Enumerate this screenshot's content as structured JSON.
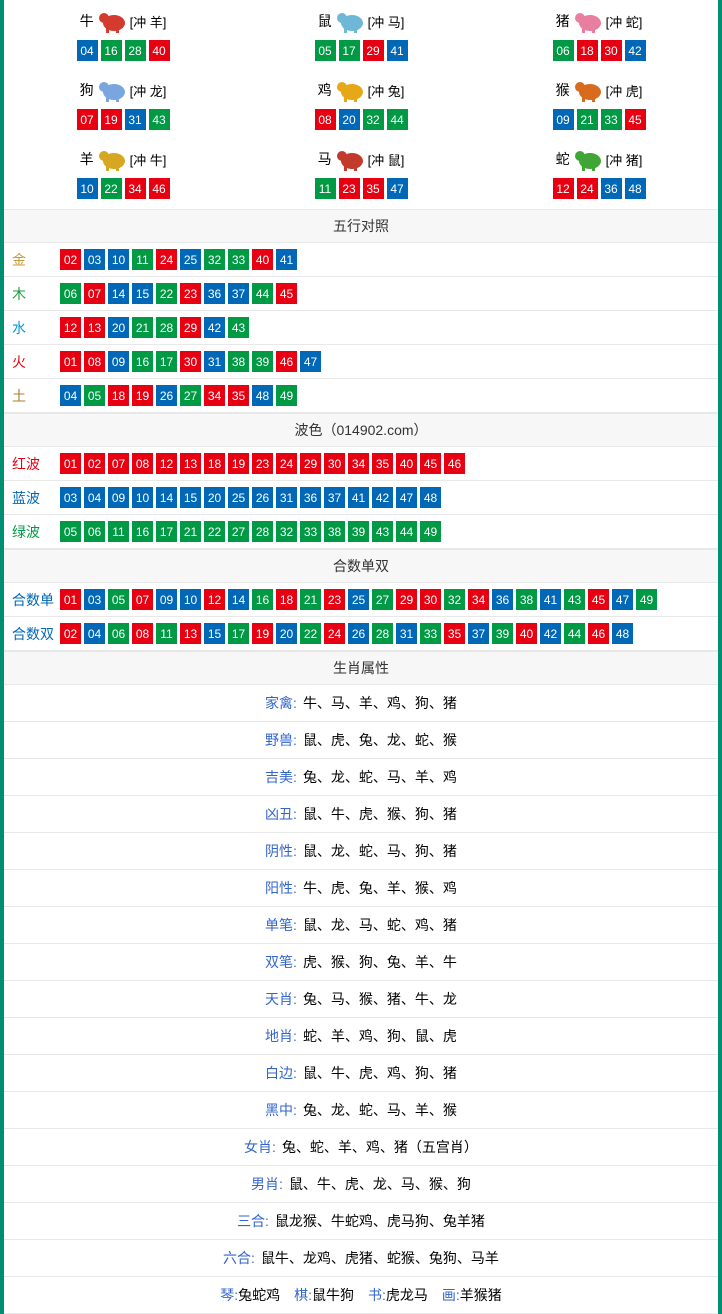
{
  "colors": {
    "red": "#e60012",
    "blue": "#0068b7",
    "green": "#009944",
    "border": "#009071",
    "gold": "#c89a36",
    "fire": "#e60012",
    "water": "#0099dd",
    "earth": "#b07a2a",
    "wood": "#1b9a3a",
    "label_blue": "#3366cc"
  },
  "zodiac": [
    {
      "name": "牛",
      "clash": "[冲 羊]",
      "icon": "ox",
      "icon_color": "#d23b2e",
      "balls": [
        {
          "n": "04",
          "c": "blue"
        },
        {
          "n": "16",
          "c": "green"
        },
        {
          "n": "28",
          "c": "green"
        },
        {
          "n": "40",
          "c": "red"
        }
      ]
    },
    {
      "name": "鼠",
      "clash": "[冲 马]",
      "icon": "rat",
      "icon_color": "#6fb7d6",
      "balls": [
        {
          "n": "05",
          "c": "green"
        },
        {
          "n": "17",
          "c": "green"
        },
        {
          "n": "29",
          "c": "red"
        },
        {
          "n": "41",
          "c": "blue"
        }
      ]
    },
    {
      "name": "猪",
      "clash": "[冲 蛇]",
      "icon": "pig",
      "icon_color": "#e87fa0",
      "balls": [
        {
          "n": "06",
          "c": "green"
        },
        {
          "n": "18",
          "c": "red"
        },
        {
          "n": "30",
          "c": "red"
        },
        {
          "n": "42",
          "c": "blue"
        }
      ]
    },
    {
      "name": "狗",
      "clash": "[冲 龙]",
      "icon": "dog",
      "icon_color": "#7aa6e0",
      "balls": [
        {
          "n": "07",
          "c": "red"
        },
        {
          "n": "19",
          "c": "red"
        },
        {
          "n": "31",
          "c": "blue"
        },
        {
          "n": "43",
          "c": "green"
        }
      ]
    },
    {
      "name": "鸡",
      "clash": "[冲 兔]",
      "icon": "rooster",
      "icon_color": "#e6a817",
      "balls": [
        {
          "n": "08",
          "c": "red"
        },
        {
          "n": "20",
          "c": "blue"
        },
        {
          "n": "32",
          "c": "green"
        },
        {
          "n": "44",
          "c": "green"
        }
      ]
    },
    {
      "name": "猴",
      "clash": "[冲 虎]",
      "icon": "monkey",
      "icon_color": "#d96b1f",
      "balls": [
        {
          "n": "09",
          "c": "blue"
        },
        {
          "n": "21",
          "c": "green"
        },
        {
          "n": "33",
          "c": "green"
        },
        {
          "n": "45",
          "c": "red"
        }
      ]
    },
    {
      "name": "羊",
      "clash": "[冲 牛]",
      "icon": "goat",
      "icon_color": "#d6a721",
      "balls": [
        {
          "n": "10",
          "c": "blue"
        },
        {
          "n": "22",
          "c": "green"
        },
        {
          "n": "34",
          "c": "red"
        },
        {
          "n": "46",
          "c": "red"
        }
      ]
    },
    {
      "name": "马",
      "clash": "[冲 鼠]",
      "icon": "horse",
      "icon_color": "#c13a2b",
      "balls": [
        {
          "n": "11",
          "c": "green"
        },
        {
          "n": "23",
          "c": "red"
        },
        {
          "n": "35",
          "c": "red"
        },
        {
          "n": "47",
          "c": "blue"
        }
      ]
    },
    {
      "name": "蛇",
      "clash": "[冲 猪]",
      "icon": "snake",
      "icon_color": "#3fa535",
      "balls": [
        {
          "n": "12",
          "c": "red"
        },
        {
          "n": "24",
          "c": "red"
        },
        {
          "n": "36",
          "c": "blue"
        },
        {
          "n": "48",
          "c": "blue"
        }
      ]
    }
  ],
  "sections": {
    "wuxing_header": "五行对照",
    "bose_header": "波色（014902.com）",
    "heshu_header": "合数单双",
    "shuxing_header": "生肖属性"
  },
  "wuxing": [
    {
      "label": "金",
      "label_color": "#c89a36",
      "balls": [
        {
          "n": "02",
          "c": "red"
        },
        {
          "n": "03",
          "c": "blue"
        },
        {
          "n": "10",
          "c": "blue"
        },
        {
          "n": "11",
          "c": "green"
        },
        {
          "n": "24",
          "c": "red"
        },
        {
          "n": "25",
          "c": "blue"
        },
        {
          "n": "32",
          "c": "green"
        },
        {
          "n": "33",
          "c": "green"
        },
        {
          "n": "40",
          "c": "red"
        },
        {
          "n": "41",
          "c": "blue"
        }
      ]
    },
    {
      "label": "木",
      "label_color": "#1b9a3a",
      "balls": [
        {
          "n": "06",
          "c": "green"
        },
        {
          "n": "07",
          "c": "red"
        },
        {
          "n": "14",
          "c": "blue"
        },
        {
          "n": "15",
          "c": "blue"
        },
        {
          "n": "22",
          "c": "green"
        },
        {
          "n": "23",
          "c": "red"
        },
        {
          "n": "36",
          "c": "blue"
        },
        {
          "n": "37",
          "c": "blue"
        },
        {
          "n": "44",
          "c": "green"
        },
        {
          "n": "45",
          "c": "red"
        }
      ]
    },
    {
      "label": "水",
      "label_color": "#0099dd",
      "balls": [
        {
          "n": "12",
          "c": "red"
        },
        {
          "n": "13",
          "c": "red"
        },
        {
          "n": "20",
          "c": "blue"
        },
        {
          "n": "21",
          "c": "green"
        },
        {
          "n": "28",
          "c": "green"
        },
        {
          "n": "29",
          "c": "red"
        },
        {
          "n": "42",
          "c": "blue"
        },
        {
          "n": "43",
          "c": "green"
        }
      ]
    },
    {
      "label": "火",
      "label_color": "#e60012",
      "balls": [
        {
          "n": "01",
          "c": "red"
        },
        {
          "n": "08",
          "c": "red"
        },
        {
          "n": "09",
          "c": "blue"
        },
        {
          "n": "16",
          "c": "green"
        },
        {
          "n": "17",
          "c": "green"
        },
        {
          "n": "30",
          "c": "red"
        },
        {
          "n": "31",
          "c": "blue"
        },
        {
          "n": "38",
          "c": "green"
        },
        {
          "n": "39",
          "c": "green"
        },
        {
          "n": "46",
          "c": "red"
        },
        {
          "n": "47",
          "c": "blue"
        }
      ]
    },
    {
      "label": "土",
      "label_color": "#b07a2a",
      "balls": [
        {
          "n": "04",
          "c": "blue"
        },
        {
          "n": "05",
          "c": "green"
        },
        {
          "n": "18",
          "c": "red"
        },
        {
          "n": "19",
          "c": "red"
        },
        {
          "n": "26",
          "c": "blue"
        },
        {
          "n": "27",
          "c": "green"
        },
        {
          "n": "34",
          "c": "red"
        },
        {
          "n": "35",
          "c": "red"
        },
        {
          "n": "48",
          "c": "blue"
        },
        {
          "n": "49",
          "c": "green"
        }
      ]
    }
  ],
  "bose": [
    {
      "label": "红波",
      "label_color": "#e60012",
      "balls": [
        {
          "n": "01",
          "c": "red"
        },
        {
          "n": "02",
          "c": "red"
        },
        {
          "n": "07",
          "c": "red"
        },
        {
          "n": "08",
          "c": "red"
        },
        {
          "n": "12",
          "c": "red"
        },
        {
          "n": "13",
          "c": "red"
        },
        {
          "n": "18",
          "c": "red"
        },
        {
          "n": "19",
          "c": "red"
        },
        {
          "n": "23",
          "c": "red"
        },
        {
          "n": "24",
          "c": "red"
        },
        {
          "n": "29",
          "c": "red"
        },
        {
          "n": "30",
          "c": "red"
        },
        {
          "n": "34",
          "c": "red"
        },
        {
          "n": "35",
          "c": "red"
        },
        {
          "n": "40",
          "c": "red"
        },
        {
          "n": "45",
          "c": "red"
        },
        {
          "n": "46",
          "c": "red"
        }
      ]
    },
    {
      "label": "蓝波",
      "label_color": "#0068b7",
      "balls": [
        {
          "n": "03",
          "c": "blue"
        },
        {
          "n": "04",
          "c": "blue"
        },
        {
          "n": "09",
          "c": "blue"
        },
        {
          "n": "10",
          "c": "blue"
        },
        {
          "n": "14",
          "c": "blue"
        },
        {
          "n": "15",
          "c": "blue"
        },
        {
          "n": "20",
          "c": "blue"
        },
        {
          "n": "25",
          "c": "blue"
        },
        {
          "n": "26",
          "c": "blue"
        },
        {
          "n": "31",
          "c": "blue"
        },
        {
          "n": "36",
          "c": "blue"
        },
        {
          "n": "37",
          "c": "blue"
        },
        {
          "n": "41",
          "c": "blue"
        },
        {
          "n": "42",
          "c": "blue"
        },
        {
          "n": "47",
          "c": "blue"
        },
        {
          "n": "48",
          "c": "blue"
        }
      ]
    },
    {
      "label": "绿波",
      "label_color": "#009944",
      "balls": [
        {
          "n": "05",
          "c": "green"
        },
        {
          "n": "06",
          "c": "green"
        },
        {
          "n": "11",
          "c": "green"
        },
        {
          "n": "16",
          "c": "green"
        },
        {
          "n": "17",
          "c": "green"
        },
        {
          "n": "21",
          "c": "green"
        },
        {
          "n": "22",
          "c": "green"
        },
        {
          "n": "27",
          "c": "green"
        },
        {
          "n": "28",
          "c": "green"
        },
        {
          "n": "32",
          "c": "green"
        },
        {
          "n": "33",
          "c": "green"
        },
        {
          "n": "38",
          "c": "green"
        },
        {
          "n": "39",
          "c": "green"
        },
        {
          "n": "43",
          "c": "green"
        },
        {
          "n": "44",
          "c": "green"
        },
        {
          "n": "49",
          "c": "green"
        }
      ]
    }
  ],
  "heshu": [
    {
      "label": "合数单",
      "label_color": "#0068b7",
      "balls": [
        {
          "n": "01",
          "c": "red"
        },
        {
          "n": "03",
          "c": "blue"
        },
        {
          "n": "05",
          "c": "green"
        },
        {
          "n": "07",
          "c": "red"
        },
        {
          "n": "09",
          "c": "blue"
        },
        {
          "n": "10",
          "c": "blue"
        },
        {
          "n": "12",
          "c": "red"
        },
        {
          "n": "14",
          "c": "blue"
        },
        {
          "n": "16",
          "c": "green"
        },
        {
          "n": "18",
          "c": "red"
        },
        {
          "n": "21",
          "c": "green"
        },
        {
          "n": "23",
          "c": "red"
        },
        {
          "n": "25",
          "c": "blue"
        },
        {
          "n": "27",
          "c": "green"
        },
        {
          "n": "29",
          "c": "red"
        },
        {
          "n": "30",
          "c": "red"
        },
        {
          "n": "32",
          "c": "green"
        },
        {
          "n": "34",
          "c": "red"
        },
        {
          "n": "36",
          "c": "blue"
        },
        {
          "n": "38",
          "c": "green"
        },
        {
          "n": "41",
          "c": "blue"
        },
        {
          "n": "43",
          "c": "green"
        },
        {
          "n": "45",
          "c": "red"
        },
        {
          "n": "47",
          "c": "blue"
        },
        {
          "n": "49",
          "c": "green"
        }
      ]
    },
    {
      "label": "合数双",
      "label_color": "#0068b7",
      "balls": [
        {
          "n": "02",
          "c": "red"
        },
        {
          "n": "04",
          "c": "blue"
        },
        {
          "n": "06",
          "c": "green"
        },
        {
          "n": "08",
          "c": "red"
        },
        {
          "n": "11",
          "c": "green"
        },
        {
          "n": "13",
          "c": "red"
        },
        {
          "n": "15",
          "c": "blue"
        },
        {
          "n": "17",
          "c": "green"
        },
        {
          "n": "19",
          "c": "red"
        },
        {
          "n": "20",
          "c": "blue"
        },
        {
          "n": "22",
          "c": "green"
        },
        {
          "n": "24",
          "c": "red"
        },
        {
          "n": "26",
          "c": "blue"
        },
        {
          "n": "28",
          "c": "green"
        },
        {
          "n": "31",
          "c": "blue"
        },
        {
          "n": "33",
          "c": "green"
        },
        {
          "n": "35",
          "c": "red"
        },
        {
          "n": "37",
          "c": "blue"
        },
        {
          "n": "39",
          "c": "green"
        },
        {
          "n": "40",
          "c": "red"
        },
        {
          "n": "42",
          "c": "blue"
        },
        {
          "n": "44",
          "c": "green"
        },
        {
          "n": "46",
          "c": "red"
        },
        {
          "n": "48",
          "c": "blue"
        }
      ]
    }
  ],
  "attrs": [
    {
      "label": "家禽:",
      "label_color": "#3366cc",
      "text": "牛、马、羊、鸡、狗、猪"
    },
    {
      "label": "野兽:",
      "label_color": "#3366cc",
      "text": "鼠、虎、兔、龙、蛇、猴"
    },
    {
      "label": "吉美:",
      "label_color": "#3366cc",
      "text": "兔、龙、蛇、马、羊、鸡"
    },
    {
      "label": "凶丑:",
      "label_color": "#3366cc",
      "text": "鼠、牛、虎、猴、狗、猪"
    },
    {
      "label": "阴性:",
      "label_color": "#3366cc",
      "text": "鼠、龙、蛇、马、狗、猪"
    },
    {
      "label": "阳性:",
      "label_color": "#3366cc",
      "text": "牛、虎、兔、羊、猴、鸡"
    },
    {
      "label": "单笔:",
      "label_color": "#3366cc",
      "text": "鼠、龙、马、蛇、鸡、猪"
    },
    {
      "label": "双笔:",
      "label_color": "#3366cc",
      "text": "虎、猴、狗、兔、羊、牛"
    },
    {
      "label": "天肖:",
      "label_color": "#3366cc",
      "text": "兔、马、猴、猪、牛、龙"
    },
    {
      "label": "地肖:",
      "label_color": "#3366cc",
      "text": "蛇、羊、鸡、狗、鼠、虎"
    },
    {
      "label": "白边:",
      "label_color": "#3366cc",
      "text": "鼠、牛、虎、鸡、狗、猪"
    },
    {
      "label": "黑中:",
      "label_color": "#3366cc",
      "text": "兔、龙、蛇、马、羊、猴"
    },
    {
      "label": "女肖:",
      "label_color": "#3366cc",
      "text": "兔、蛇、羊、鸡、猪（五宫肖）"
    },
    {
      "label": "男肖:",
      "label_color": "#3366cc",
      "text": "鼠、牛、虎、龙、马、猴、狗"
    },
    {
      "label": "三合:",
      "label_color": "#3366cc",
      "text": "鼠龙猴、牛蛇鸡、虎马狗、兔羊猪"
    },
    {
      "label": "六合:",
      "label_color": "#3366cc",
      "text": "鼠牛、龙鸡、虎猪、蛇猴、兔狗、马羊"
    }
  ],
  "bottom_line": {
    "parts": [
      {
        "label": "琴:",
        "label_color": "#3366cc",
        "text": "兔蛇鸡"
      },
      {
        "label": "棋:",
        "label_color": "#3366cc",
        "text": "鼠牛狗"
      },
      {
        "label": "书:",
        "label_color": "#3366cc",
        "text": "虎龙马"
      },
      {
        "label": "画:",
        "label_color": "#3366cc",
        "text": "羊猴猪"
      }
    ]
  }
}
